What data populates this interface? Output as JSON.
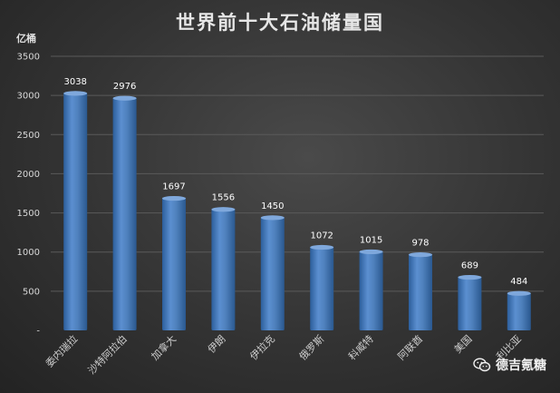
{
  "chart_data": {
    "type": "bar",
    "title": "世界前十大石油储量国",
    "ylabel": "亿桶",
    "xlabel": "",
    "categories": [
      "委内瑞拉",
      "沙特阿拉伯",
      "加拿大",
      "伊朗",
      "伊拉克",
      "俄罗斯",
      "科威特",
      "阿联酋",
      "美国",
      "利比亚"
    ],
    "values": [
      3038,
      2976,
      1697,
      1556,
      1450,
      1072,
      1015,
      978,
      689,
      484
    ],
    "ylim": [
      0,
      3500
    ],
    "yticks": [
      "-",
      "500",
      "1000",
      "1500",
      "2000",
      "2500",
      "3000",
      "3500"
    ],
    "grid": true,
    "legend": "none",
    "colors": {
      "bar": "#4f81bd",
      "bar_light": "#7fa8dc",
      "bar_dark": "#2c5e9b",
      "grid": "#5a5a5a"
    }
  },
  "watermark": {
    "text": "德吉氪糖",
    "icon": "wechat-icon"
  }
}
